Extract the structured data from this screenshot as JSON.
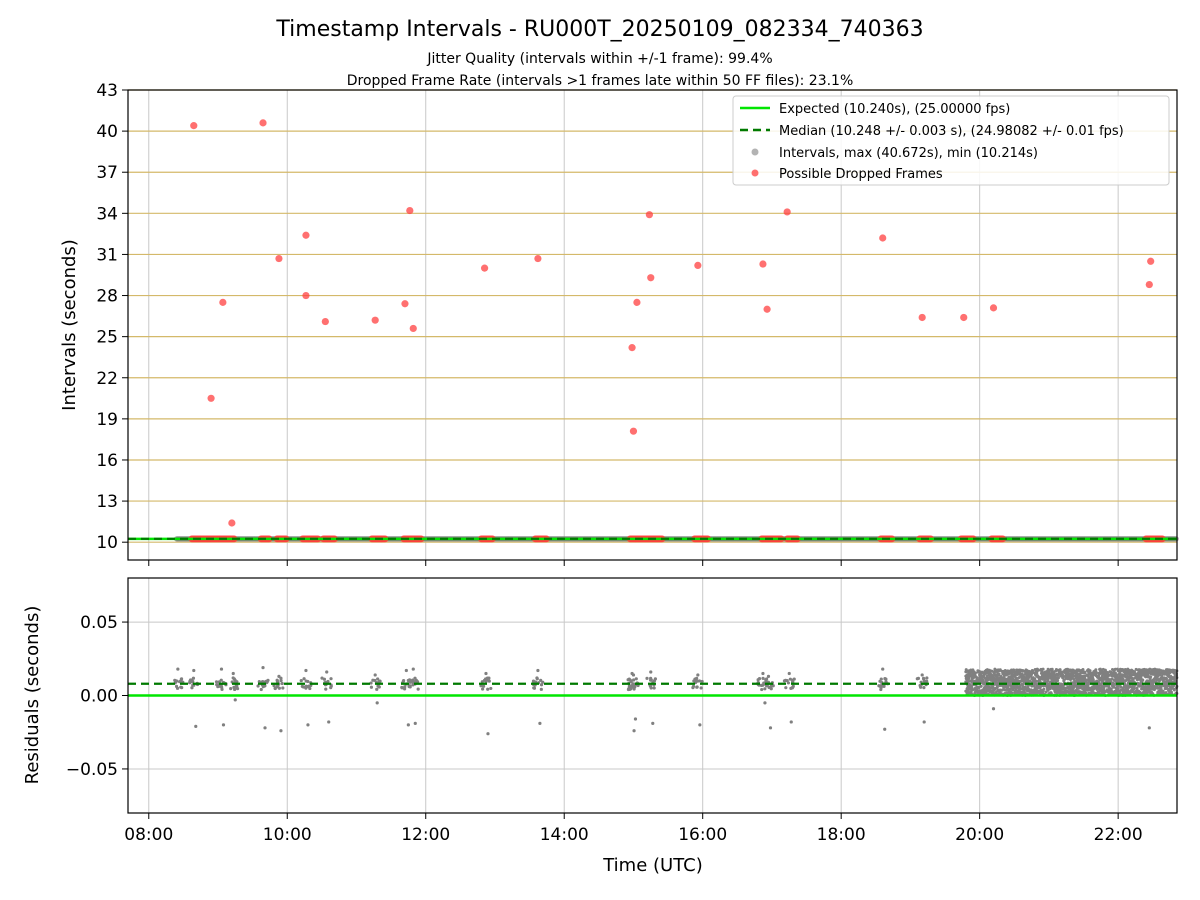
{
  "title": "Timestamp Intervals - RU000T_20250109_082334_740363",
  "subtitle_1": "Jitter Quality (intervals within +/-1 frame): 99.4%",
  "subtitle_2": "Dropped Frame Rate (intervals >1 frames late within 50 FF files): 23.1%",
  "colors": {
    "expected": "#00e600",
    "median": "#007a00",
    "intervals": "#808080",
    "dropped": "#ff4040",
    "hgrid_top": "#d4b96a",
    "grid": "#c8c8c8"
  },
  "chart_data": [
    {
      "type": "scatter",
      "name": "intervals_panel",
      "ylabel": "Intervals (seconds)",
      "xlabel": "",
      "xlim": [
        7.7,
        22.85
      ],
      "ylim": [
        8.7,
        43
      ],
      "yticks": [
        10,
        13,
        16,
        19,
        22,
        25,
        28,
        31,
        34,
        37,
        40,
        43
      ],
      "xticks": [
        8,
        10,
        12,
        14,
        16,
        18,
        20,
        22
      ],
      "grid": true,
      "legend_placement": "top-right",
      "legend": [
        "Expected (10.240s), (25.00000 fps)",
        "Median (10.248 +/- 0.003 s), (24.98082 +/- 0.01 fps)",
        "Intervals, max (40.672s), min (10.214s)",
        "Possible Dropped Frames"
      ],
      "expected": 10.24,
      "median": 10.248,
      "intervals_band": {
        "x_start": 8.4,
        "x_end": 22.85,
        "y": 10.24
      },
      "dropped_frames": [
        {
          "x": 8.65,
          "y": 40.4
        },
        {
          "x": 8.9,
          "y": 20.5
        },
        {
          "x": 9.07,
          "y": 27.5
        },
        {
          "x": 9.2,
          "y": 11.4
        },
        {
          "x": 9.65,
          "y": 40.6
        },
        {
          "x": 9.88,
          "y": 30.7
        },
        {
          "x": 10.27,
          "y": 32.4
        },
        {
          "x": 10.27,
          "y": 28.0
        },
        {
          "x": 10.55,
          "y": 26.1
        },
        {
          "x": 11.27,
          "y": 26.2
        },
        {
          "x": 11.7,
          "y": 27.4
        },
        {
          "x": 11.77,
          "y": 34.2
        },
        {
          "x": 11.82,
          "y": 25.6
        },
        {
          "x": 12.85,
          "y": 30.0
        },
        {
          "x": 13.62,
          "y": 30.7
        },
        {
          "x": 14.98,
          "y": 24.2
        },
        {
          "x": 15.0,
          "y": 18.1
        },
        {
          "x": 15.05,
          "y": 27.5
        },
        {
          "x": 15.23,
          "y": 33.9
        },
        {
          "x": 15.25,
          "y": 29.3
        },
        {
          "x": 15.93,
          "y": 30.2
        },
        {
          "x": 16.87,
          "y": 30.3
        },
        {
          "x": 16.93,
          "y": 27.0
        },
        {
          "x": 17.22,
          "y": 34.1
        },
        {
          "x": 18.6,
          "y": 32.2
        },
        {
          "x": 19.17,
          "y": 26.4
        },
        {
          "x": 19.77,
          "y": 26.4
        },
        {
          "x": 20.2,
          "y": 27.1
        },
        {
          "x": 22.45,
          "y": 28.8
        },
        {
          "x": 22.47,
          "y": 30.5
        }
      ],
      "dropped_clusters_at_expected": [
        [
          8.62,
          9.25
        ],
        [
          9.62,
          9.75
        ],
        [
          9.85,
          10.0
        ],
        [
          10.22,
          10.45
        ],
        [
          10.52,
          10.7
        ],
        [
          11.22,
          11.42
        ],
        [
          11.68,
          11.95
        ],
        [
          12.8,
          12.98
        ],
        [
          13.58,
          13.75
        ],
        [
          14.95,
          15.42
        ],
        [
          15.88,
          16.08
        ],
        [
          16.85,
          17.15
        ],
        [
          17.22,
          17.38
        ],
        [
          18.57,
          18.75
        ],
        [
          19.13,
          19.3
        ],
        [
          19.73,
          19.92
        ],
        [
          20.17,
          20.35
        ],
        [
          22.4,
          22.65
        ]
      ]
    },
    {
      "type": "scatter",
      "name": "residuals_panel",
      "ylabel": "Residuals (seconds)",
      "xlabel": "Time (UTC)",
      "xlim": [
        7.7,
        22.85
      ],
      "ylim": [
        -0.08,
        0.08
      ],
      "yticks": [
        -0.05,
        0.0,
        0.05
      ],
      "ytick_labels": [
        "−0.05",
        "0.00",
        "0.05"
      ],
      "xticks": [
        8,
        10,
        12,
        14,
        16,
        18,
        20,
        22
      ],
      "xtick_labels": [
        "08:00",
        "10:00",
        "12:00",
        "14:00",
        "16:00",
        "18:00",
        "20:00",
        "22:00"
      ],
      "grid": true,
      "expected": 0.0,
      "median": 0.008,
      "residual_clusters": [
        {
          "x": 8.42,
          "hi": 0.018,
          "lo": null
        },
        {
          "x": 8.65,
          "hi": 0.017,
          "lo": -0.021
        },
        {
          "x": 9.05,
          "hi": 0.018,
          "lo": -0.02
        },
        {
          "x": 9.22,
          "hi": 0.015,
          "lo": -0.003
        },
        {
          "x": 9.65,
          "hi": 0.019,
          "lo": -0.022
        },
        {
          "x": 9.88,
          "hi": 0.013,
          "lo": -0.024
        },
        {
          "x": 10.27,
          "hi": 0.017,
          "lo": -0.02
        },
        {
          "x": 10.57,
          "hi": 0.016,
          "lo": -0.018
        },
        {
          "x": 11.27,
          "hi": 0.014,
          "lo": -0.005
        },
        {
          "x": 11.72,
          "hi": 0.017,
          "lo": -0.02
        },
        {
          "x": 11.82,
          "hi": 0.018,
          "lo": -0.019
        },
        {
          "x": 12.87,
          "hi": 0.015,
          "lo": -0.026
        },
        {
          "x": 13.62,
          "hi": 0.017,
          "lo": -0.019
        },
        {
          "x": 14.98,
          "hi": 0.015,
          "lo": -0.024
        },
        {
          "x": 15.0,
          "hi": 0.014,
          "lo": -0.016
        },
        {
          "x": 15.25,
          "hi": 0.016,
          "lo": -0.019
        },
        {
          "x": 15.93,
          "hi": 0.014,
          "lo": -0.02
        },
        {
          "x": 16.87,
          "hi": 0.015,
          "lo": -0.005
        },
        {
          "x": 16.95,
          "hi": 0.013,
          "lo": -0.022
        },
        {
          "x": 17.25,
          "hi": 0.015,
          "lo": -0.018
        },
        {
          "x": 18.6,
          "hi": 0.018,
          "lo": -0.023
        },
        {
          "x": 19.17,
          "hi": 0.014,
          "lo": -0.018
        }
      ],
      "dense_band": {
        "x_start": 19.8,
        "x_end": 22.85,
        "y_min": 0.0,
        "y_max": 0.018,
        "outliers": [
          {
            "x": 20.2,
            "y": -0.009
          },
          {
            "x": 22.45,
            "y": -0.022
          }
        ]
      }
    }
  ]
}
